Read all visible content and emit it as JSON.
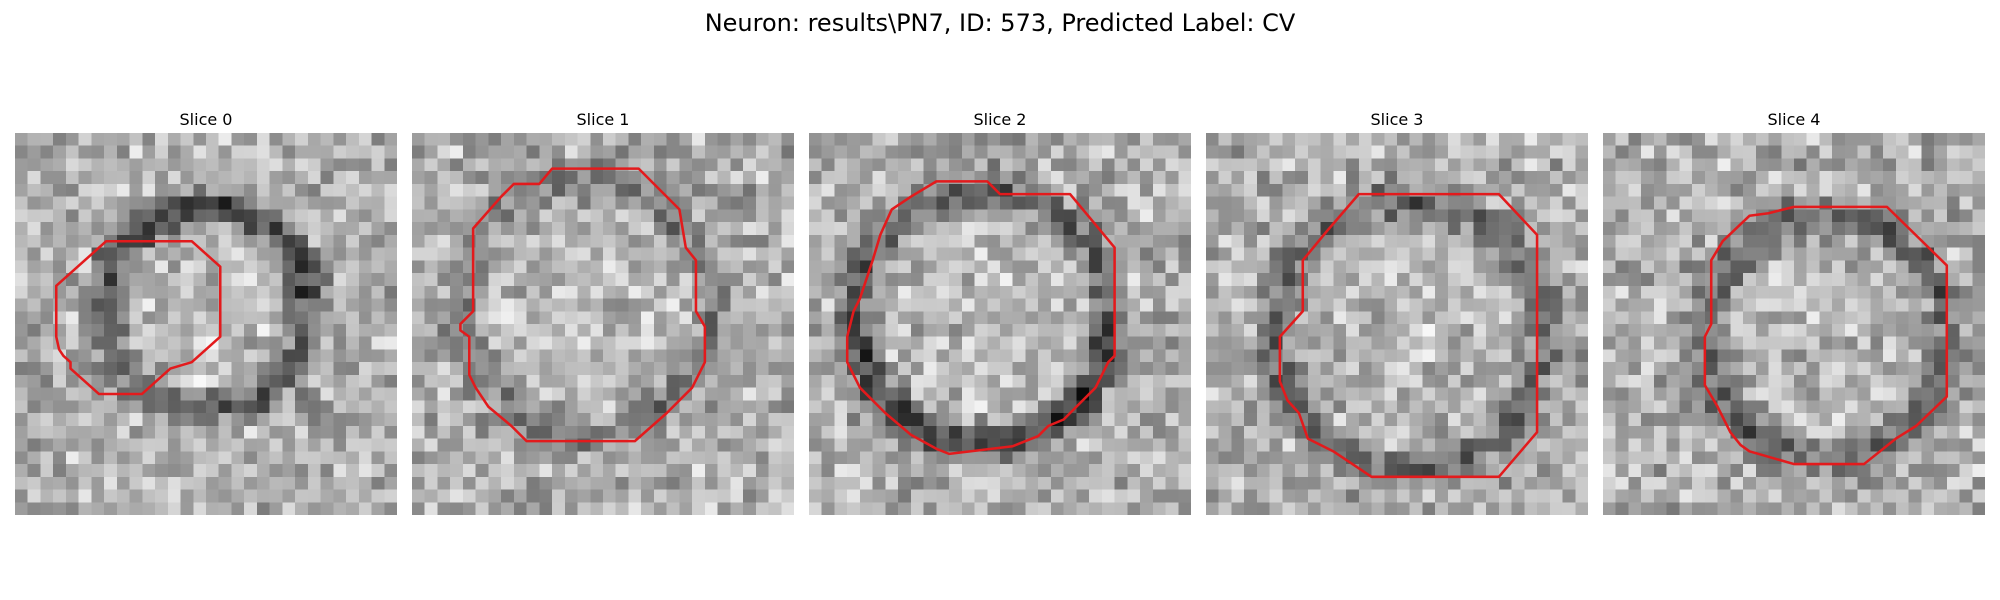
{
  "figure": {
    "title": "Neuron: results\\PN7, ID: 573, Predicted Label: CV"
  },
  "panels": [
    {
      "title": "Slice 0",
      "seed": 11,
      "ring": "dark-halo-top"
    },
    {
      "title": "Slice 1",
      "seed": 23,
      "ring": "faint"
    },
    {
      "title": "Slice 2",
      "seed": 37,
      "ring": "dark-bottom"
    },
    {
      "title": "Slice 3",
      "seed": 51,
      "ring": "dark-halo"
    },
    {
      "title": "Slice 4",
      "seed": 67,
      "ring": "dark-halo"
    }
  ],
  "overlay": {
    "contour_color": "#e31a1c"
  }
}
